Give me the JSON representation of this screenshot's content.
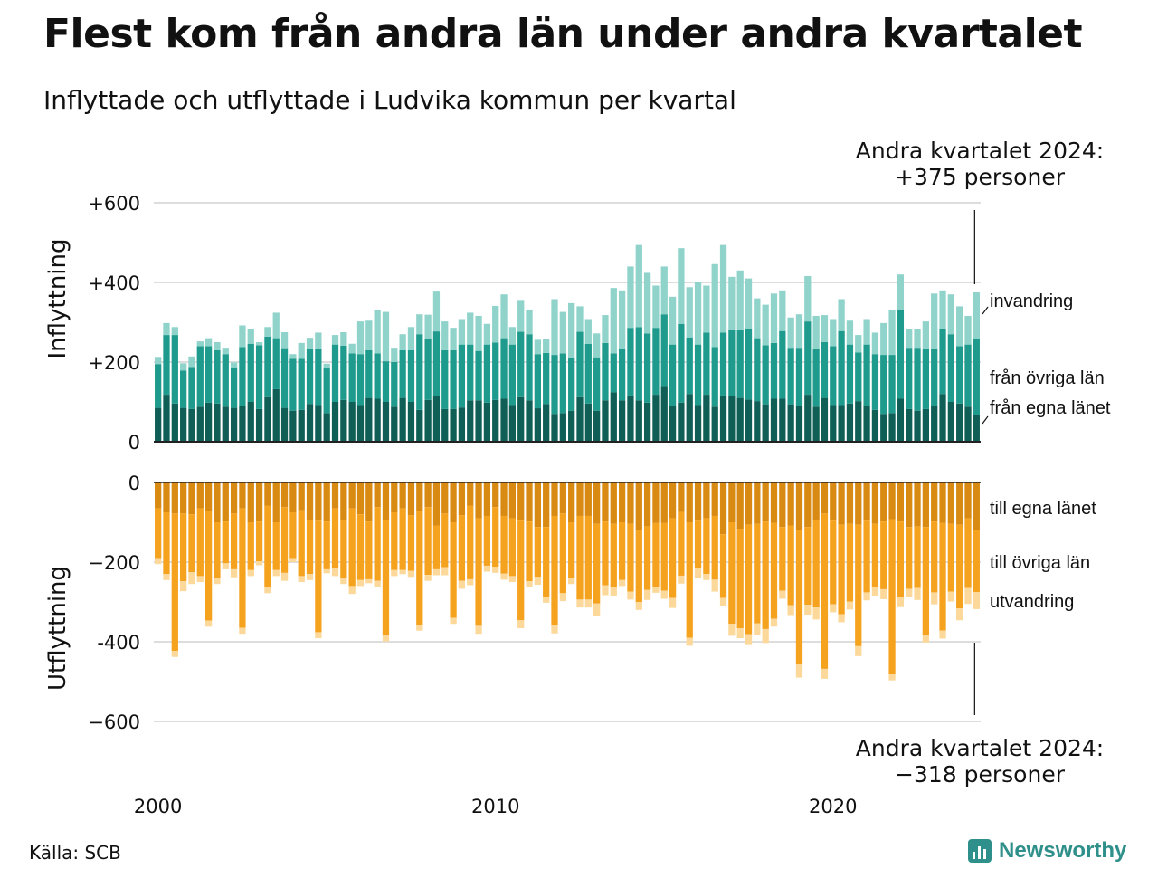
{
  "title": "Flest kom från andra län under andra kvartalet",
  "subtitle": "Inflyttade och utflyttade i Ludvika kommun per kvartal",
  "annotation_top": {
    "line1": "Andra kvartalet 2024:",
    "line2": "+375 personer"
  },
  "annotation_bottom": {
    "line1": "Andra kvartalet 2024:",
    "line2": "−318 personer"
  },
  "source": "Källa: SCB",
  "logo_text": "Newsworthy",
  "colors": {
    "in_egna": "#0f5f57",
    "in_ovriga": "#1f9b8d",
    "in_invandring": "#8fd3cb",
    "ut_egna": "#d98a12",
    "ut_ovriga": "#f5a21f",
    "ut_utvandring": "#fcd99a",
    "grid": "#dddddd",
    "axis": "#222222"
  },
  "chart_data": [
    {
      "type": "bar",
      "stacked": true,
      "ylabel": "Inflyttning",
      "ylim": [
        0,
        600
      ],
      "yticks": [
        0,
        200,
        400,
        600
      ],
      "ytick_labels": [
        "0",
        "+200",
        "+400",
        "+600"
      ],
      "x": [
        "2000Q1",
        "2000Q2",
        "2000Q3",
        "2000Q4",
        "2001Q1",
        "2001Q2",
        "2001Q3",
        "2001Q4",
        "2002Q1",
        "2002Q2",
        "2002Q3",
        "2002Q4",
        "2003Q1",
        "2003Q2",
        "2003Q3",
        "2003Q4",
        "2004Q1",
        "2004Q2",
        "2004Q3",
        "2004Q4",
        "2005Q1",
        "2005Q2",
        "2005Q3",
        "2005Q4",
        "2006Q1",
        "2006Q2",
        "2006Q3",
        "2006Q4",
        "2007Q1",
        "2007Q2",
        "2007Q3",
        "2007Q4",
        "2008Q1",
        "2008Q2",
        "2008Q3",
        "2008Q4",
        "2009Q1",
        "2009Q2",
        "2009Q3",
        "2009Q4",
        "2010Q1",
        "2010Q2",
        "2010Q3",
        "2010Q4",
        "2011Q1",
        "2011Q2",
        "2011Q3",
        "2011Q4",
        "2012Q1",
        "2012Q2",
        "2012Q3",
        "2012Q4",
        "2013Q1",
        "2013Q2",
        "2013Q3",
        "2013Q4",
        "2014Q1",
        "2014Q2",
        "2014Q3",
        "2014Q4",
        "2015Q1",
        "2015Q2",
        "2015Q3",
        "2015Q4",
        "2016Q1",
        "2016Q2",
        "2016Q3",
        "2016Q4",
        "2017Q1",
        "2017Q2",
        "2017Q3",
        "2017Q4",
        "2018Q1",
        "2018Q2",
        "2018Q3",
        "2018Q4",
        "2019Q1",
        "2019Q2",
        "2019Q3",
        "2019Q4",
        "2020Q1",
        "2020Q2",
        "2020Q3",
        "2020Q4",
        "2021Q1",
        "2021Q2",
        "2021Q3",
        "2021Q4",
        "2022Q1",
        "2022Q2",
        "2022Q3",
        "2022Q4",
        "2023Q1",
        "2023Q2",
        "2023Q3",
        "2023Q4",
        "2024Q1",
        "2024Q2"
      ],
      "xticks": [
        "2000",
        "2010",
        "2020"
      ],
      "series": [
        {
          "name": "från egna länet",
          "values": [
            85,
            118,
            96,
            85,
            82,
            88,
            98,
            96,
            88,
            85,
            90,
            100,
            82,
            112,
            132,
            85,
            78,
            80,
            95,
            92,
            72,
            100,
            105,
            100,
            92,
            110,
            108,
            100,
            88,
            110,
            100,
            80,
            105,
            115,
            82,
            82,
            86,
            104,
            104,
            98,
            105,
            108,
            92,
            112,
            104,
            84,
            95,
            70,
            72,
            78,
            112,
            96,
            78,
            104,
            124,
            104,
            116,
            104,
            98,
            118,
            140,
            90,
            98,
            120,
            92,
            118,
            88,
            116,
            114,
            110,
            106,
            102,
            94,
            108,
            108,
            94,
            90,
            118,
            88,
            110,
            92,
            92,
            96,
            102,
            90,
            80,
            70,
            72,
            108,
            82,
            78,
            82,
            90,
            120,
            100,
            96,
            88,
            68
          ],
          "_note_unused": null
        },
        {
          "name": "från övriga län",
          "values": [
            110,
            150,
            172,
            94,
            106,
            152,
            142,
            134,
            132,
            102,
            148,
            146,
            160,
            152,
            128,
            150,
            130,
            128,
            138,
            142,
            112,
            144,
            136,
            122,
            128,
            120,
            114,
            102,
            112,
            120,
            130,
            190,
            152,
            162,
            148,
            148,
            158,
            140,
            124,
            146,
            144,
            152,
            152,
            164,
            166,
            136,
            128,
            148,
            150,
            132,
            164,
            150,
            134,
            144,
            98,
            130,
            170,
            184,
            174,
            168,
            180,
            154,
            198,
            142,
            152,
            156,
            150,
            158,
            166,
            170,
            176,
            158,
            148,
            140,
            170,
            142,
            146,
            184,
            146,
            140,
            148,
            186,
            148,
            122,
            154,
            140,
            148,
            146,
            222,
            154,
            158,
            150,
            142,
            162,
            170,
            144,
            156,
            190
          ],
          "_note_unused": null
        },
        {
          "name": "invandring",
          "values": [
            18,
            30,
            20,
            18,
            26,
            12,
            20,
            20,
            16,
            12,
            54,
            36,
            8,
            24,
            64,
            40,
            12,
            40,
            28,
            40,
            12,
            24,
            34,
            24,
            82,
            74,
            108,
            124,
            36,
            40,
            58,
            50,
            62,
            100,
            72,
            56,
            64,
            80,
            88,
            52,
            92,
            110,
            44,
            80,
            62,
            36,
            34,
            140,
            104,
            138,
            64,
            62,
            60,
            70,
            164,
            146,
            154,
            206,
            152,
            106,
            120,
            120,
            190,
            126,
            156,
            118,
            208,
            220,
            134,
            150,
            128,
            100,
            102,
            124,
            102,
            76,
            84,
            114,
            82,
            68,
            68,
            80,
            60,
            44,
            64,
            54,
            80,
            112,
            90,
            48,
            46,
            70,
            140,
            98,
            100,
            100,
            72,
            117
          ]
        }
      ]
    },
    {
      "type": "bar",
      "stacked": true,
      "ylabel": "Utflyttning",
      "ylim": [
        -600,
        0
      ],
      "yticks": [
        0,
        -200,
        -400,
        -600
      ],
      "ytick_labels": [
        "0",
        "−200",
        "-400",
        "−600"
      ],
      "x_ref": "same as first chart",
      "series": [
        {
          "name": "till egna länet",
          "values": [
            -65,
            -75,
            -78,
            -78,
            -80,
            -65,
            -72,
            -100,
            -98,
            -78,
            -65,
            -100,
            -98,
            -58,
            -100,
            -62,
            -75,
            -70,
            -95,
            -96,
            -98,
            -65,
            -95,
            -65,
            -80,
            -98,
            -62,
            -94,
            -75,
            -65,
            -82,
            -72,
            -62,
            -108,
            -78,
            -100,
            -82,
            -58,
            -90,
            -84,
            -62,
            -84,
            -90,
            -96,
            -98,
            -112,
            -112,
            -84,
            -78,
            -100,
            -84,
            -84,
            -104,
            -98,
            -104,
            -100,
            -104,
            -120,
            -110,
            -102,
            -102,
            -90,
            -74,
            -100,
            -96,
            -90,
            -84,
            -130,
            -100,
            -116,
            -106,
            -104,
            -98,
            -102,
            -112,
            -108,
            -120,
            -112,
            -94,
            -78,
            -96,
            -106,
            -104,
            -106,
            -96,
            -104,
            -98,
            -92,
            -98,
            -112,
            -110,
            -112,
            -98,
            -102,
            -104,
            -106,
            -90,
            -120
          ]
        },
        {
          "name": "till övriga län",
          "values": [
            -125,
            -155,
            -345,
            -170,
            -145,
            -170,
            -275,
            -140,
            -105,
            -140,
            -300,
            -120,
            -100,
            -205,
            -120,
            -165,
            -115,
            -165,
            -135,
            -280,
            -120,
            -150,
            -145,
            -195,
            -165,
            -145,
            -185,
            -290,
            -145,
            -155,
            -140,
            -285,
            -170,
            -110,
            -135,
            -240,
            -165,
            -185,
            -270,
            -125,
            -150,
            -145,
            -145,
            -250,
            -150,
            -125,
            -175,
            -275,
            -200,
            -140,
            -210,
            -210,
            -200,
            -160,
            -160,
            -145,
            -170,
            -180,
            -160,
            -160,
            -170,
            -200,
            -160,
            -290,
            -120,
            -140,
            -160,
            -160,
            -255,
            -250,
            -275,
            -250,
            -270,
            -240,
            -160,
            -200,
            -335,
            -195,
            -220,
            -390,
            -210,
            -225,
            -195,
            -305,
            -180,
            -160,
            -170,
            -390,
            -190,
            -155,
            -155,
            -270,
            -178,
            -270,
            -170,
            -210,
            -175,
            -155
          ]
        },
        {
          "name": "utvandring",
          "values": [
            -15,
            -15,
            -15,
            -25,
            -30,
            -15,
            -15,
            -15,
            -15,
            -20,
            -15,
            -15,
            -10,
            -15,
            -15,
            -20,
            -10,
            -15,
            -15,
            -15,
            -10,
            -20,
            -15,
            -20,
            -15,
            -10,
            -15,
            -15,
            -15,
            -10,
            -15,
            -15,
            -15,
            -15,
            -20,
            -15,
            -20,
            -15,
            -20,
            -15,
            -15,
            -15,
            -15,
            -20,
            -15,
            -20,
            -15,
            -20,
            -20,
            -15,
            -20,
            -20,
            -30,
            -25,
            -20,
            -15,
            -20,
            -20,
            -25,
            -15,
            -20,
            -25,
            -20,
            -20,
            -25,
            -15,
            -30,
            -20,
            -30,
            -25,
            -25,
            -30,
            -35,
            -20,
            -20,
            -25,
            -35,
            -25,
            -30,
            -25,
            -20,
            -20,
            -20,
            -25,
            -20,
            -20,
            -25,
            -15,
            -25,
            -20,
            -30,
            -20,
            -30,
            -20,
            -25,
            -30,
            -40,
            -43
          ]
        }
      ]
    }
  ]
}
